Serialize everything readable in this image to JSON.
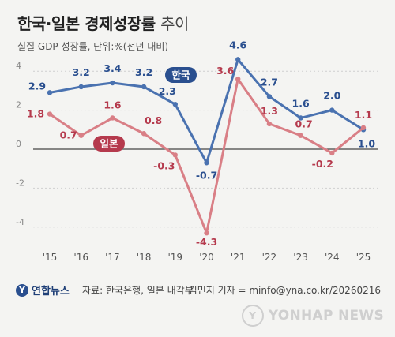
{
  "header": {
    "title_bold": "한국·일본 경제성장률",
    "title_light": "추이",
    "subtitle": "실질 GDP 성장률, 단위:%(전년 대비)"
  },
  "chart_data": {
    "type": "line",
    "categories": [
      "'15",
      "'16",
      "'17",
      "'18",
      "'19",
      "'20",
      "'21",
      "'22",
      "'23",
      "'24",
      "'25"
    ],
    "yticks": [
      4,
      2,
      0,
      -2,
      -4
    ],
    "ylim": [
      -5,
      5
    ],
    "series": [
      {
        "name": "한국",
        "color": "#4a72b0",
        "label_color": "#2a4f8f",
        "values": [
          2.9,
          3.2,
          3.4,
          3.2,
          2.3,
          -0.7,
          4.6,
          2.7,
          1.6,
          2.0,
          1.0
        ],
        "labels": [
          "2.9",
          "3.2",
          "3.4",
          "3.2",
          "2.3",
          "-0.7",
          "4.6",
          "2.7",
          "1.6",
          "2.0",
          "1.0"
        ]
      },
      {
        "name": "일본",
        "color": "#d97f86",
        "label_color": "#b53a4d",
        "values": [
          1.8,
          0.7,
          1.6,
          0.8,
          -0.3,
          -4.3,
          3.6,
          1.3,
          0.7,
          -0.2,
          1.1
        ],
        "labels": [
          "1.8",
          "0.7",
          "1.6",
          "0.8",
          "-0.3",
          "-4.3",
          "3.6",
          "1.3",
          "0.7",
          "-0.2",
          "1.1"
        ]
      }
    ],
    "legend_placement": "inline labels"
  },
  "footer": {
    "logo_mark": "Y",
    "logo_text": "연합뉴스",
    "source": "자료: 한국은행, 일본 내각부",
    "byline": "김민지 기자 = minfo@yna.co.kr/20260216",
    "watermark": "YONHAP NEWS"
  }
}
